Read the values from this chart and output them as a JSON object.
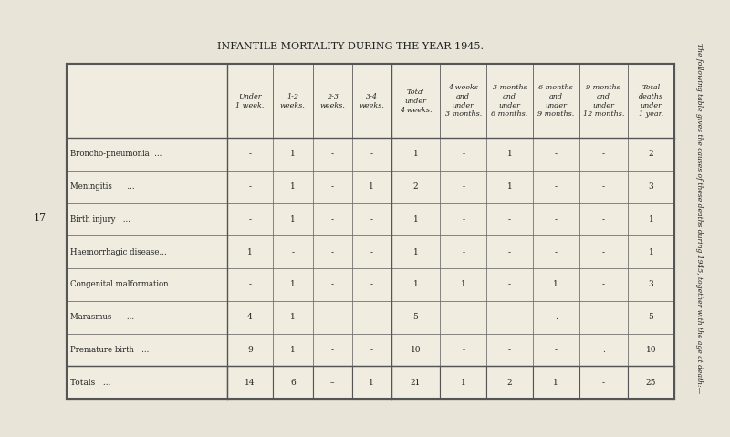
{
  "title": "INFANTILE MORTALITY DURING THE YEAR 1945.",
  "side_text": "The following table gives the causes of these deaths during 1945, together with the age at death:—",
  "page_number": "17",
  "col_headers": [
    "Under\n1 week.",
    "1-2\nweeks.",
    "2-3\nweeks.",
    "3-4\nweeks.",
    "Tota'\nunder\n4 weeks.",
    "4 weeks\nand\nunder\n3 months.",
    "3 months\nand\nunder\n6 months.",
    "6 months\nand\nunder\n9 months.",
    "9 months\nand\nunder\n12 months.",
    "Total\ndeaths\nunder\n1 year."
  ],
  "row_labels": [
    "Broncho-pneumonia  ...",
    "Meningitis      ...",
    "Birth injury   ...",
    "Haemorrhagic disease...",
    "Congenital malformation",
    "Marasmus      ...",
    "Premature birth   ..."
  ],
  "data": [
    [
      "-",
      "1",
      "-",
      "-",
      "1",
      "-",
      "1",
      "-",
      "-",
      "2"
    ],
    [
      "-",
      "1",
      "-",
      "1",
      "2",
      "-",
      "1",
      "-",
      "-",
      "3"
    ],
    [
      "-",
      "1",
      "-",
      "-",
      "1",
      "-",
      "-",
      "-",
      "-",
      "1"
    ],
    [
      "1",
      "-",
      "-",
      "-",
      "1",
      "-",
      "-",
      "-",
      "-",
      "1"
    ],
    [
      "-",
      "1",
      "-",
      "-",
      "1",
      "1",
      "-",
      "1",
      "-",
      "3"
    ],
    [
      "4",
      "1",
      "-",
      "-",
      "5",
      "-",
      "-",
      ".",
      "-",
      "5"
    ],
    [
      "9",
      "1",
      "-",
      "-",
      "10",
      "-",
      "-",
      "-",
      ".",
      "10"
    ]
  ],
  "totals_label": "Totals   ...",
  "totals_data": [
    "14",
    "6",
    "–",
    "1",
    "21",
    "1",
    "2",
    "1",
    "-",
    "25"
  ],
  "bg_color": "#e8e4d8",
  "table_bg": "#f0ece0",
  "border_color": "#555555",
  "text_color": "#222222",
  "header_italic": true
}
